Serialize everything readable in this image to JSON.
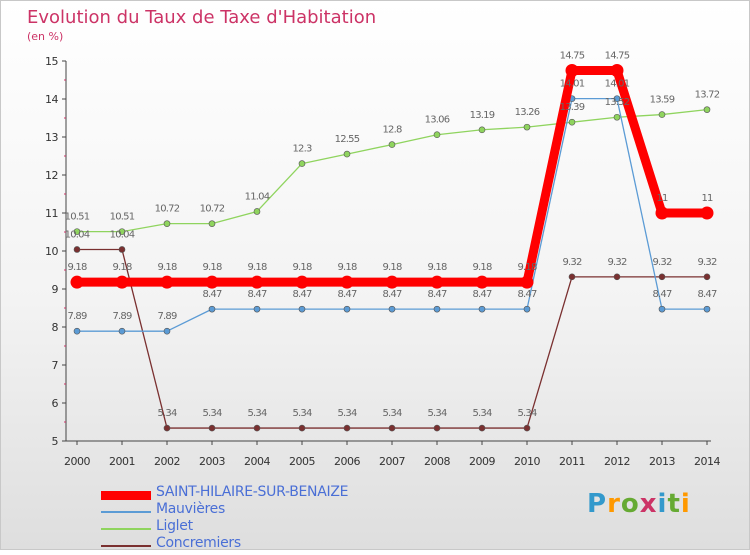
{
  "chart_data": {
    "type": "line",
    "title": "Evolution du Taux de Taxe d'Habitation",
    "ylabel": "(en %)",
    "xlabel": "",
    "x": [
      "2000",
      "2001",
      "2002",
      "2003",
      "2004",
      "2005",
      "2006",
      "2007",
      "2008",
      "2009",
      "2010",
      "2011",
      "2012",
      "2013",
      "2014"
    ],
    "ylim": [
      5,
      15
    ],
    "yticks": [
      "5",
      "6",
      "7",
      "8",
      "9",
      "10",
      "11",
      "12",
      "13",
      "14",
      "15"
    ],
    "series": [
      {
        "name": "SAINT-HILAIRE-SUR-BENAIZE",
        "color": "#ff0000",
        "values": [
          9.18,
          9.18,
          9.18,
          9.18,
          9.18,
          9.18,
          9.18,
          9.18,
          9.18,
          9.18,
          9.18,
          14.75,
          14.75,
          11,
          11
        ],
        "labels": [
          "9.18",
          "9.18",
          "9.18",
          "9.18",
          "9.18",
          "9.18",
          "9.18",
          "9.18",
          "9.18",
          "9.18",
          "9.18",
          "14.75",
          "14.75",
          "11",
          "11"
        ]
      },
      {
        "name": "Mauvières",
        "color": "#5b9bd5",
        "values": [
          7.89,
          7.89,
          7.89,
          8.47,
          8.47,
          8.47,
          8.47,
          8.47,
          8.47,
          8.47,
          8.47,
          14.01,
          14.01,
          8.47,
          8.47
        ],
        "labels": [
          "7.89",
          "7.89",
          "7.89",
          "8.47",
          "8.47",
          "8.47",
          "8.47",
          "8.47",
          "8.47",
          "8.47",
          "8.47",
          "14.01",
          "14.01",
          "8.47",
          "8.47"
        ]
      },
      {
        "name": "Liglet",
        "color": "#8fd45e",
        "values": [
          10.51,
          10.51,
          10.72,
          10.72,
          11.04,
          12.3,
          12.55,
          12.8,
          13.06,
          13.19,
          13.26,
          13.39,
          13.52,
          13.59,
          13.72
        ],
        "labels": [
          "10.51",
          "10.51",
          "10.72",
          "10.72",
          "11.04",
          "12.3",
          "12.55",
          "12.8",
          "13.06",
          "13.19",
          "13.26",
          "13.39",
          "13.52",
          "13.59",
          "13.72"
        ]
      },
      {
        "name": "Concremiers",
        "color": "#7a3030",
        "values": [
          10.04,
          10.04,
          5.34,
          5.34,
          5.34,
          5.34,
          5.34,
          5.34,
          5.34,
          5.34,
          5.34,
          9.32,
          9.32,
          9.32,
          9.32
        ],
        "labels": [
          "10.04",
          "10.04",
          "5.34",
          "5.34",
          "5.34",
          "5.34",
          "5.34",
          "5.34",
          "5.34",
          "5.34",
          "5.34",
          "9.32",
          "9.32",
          "9.32",
          "9.32"
        ]
      }
    ]
  },
  "logo": {
    "text": "Proxiti",
    "colors": [
      "#3399cc",
      "#ff9900",
      "#66aa33",
      "#cc3366",
      "#3399cc",
      "#66aa33",
      "#ff9900"
    ]
  }
}
